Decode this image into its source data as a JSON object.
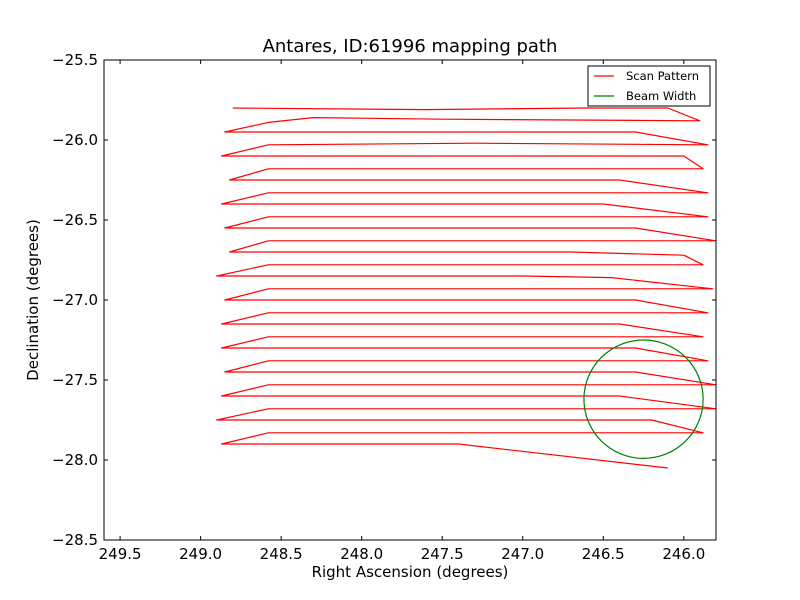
{
  "chart_data": {
    "type": "line",
    "title": "Antares, ID:61996 mapping path",
    "xlabel": "Right Ascension (degrees)",
    "ylabel": "Declination (degrees)",
    "xlim": [
      249.6,
      245.8
    ],
    "ylim": [
      -28.5,
      -25.5
    ],
    "x_inverted": true,
    "grid": false,
    "legend_position": "top-right",
    "xticks": [
      249.5,
      249.0,
      248.5,
      248.0,
      247.5,
      247.0,
      246.5,
      246.0
    ],
    "xtick_labels": [
      "249.5",
      "249.0",
      "248.5",
      "248.0",
      "247.5",
      "247.0",
      "246.5",
      "246.0"
    ],
    "yticks": [
      -25.5,
      -26.0,
      -26.5,
      -27.0,
      -27.5,
      -28.0,
      -28.5
    ],
    "ytick_labels": [
      "−25.5",
      "−26.0",
      "−26.5",
      "−27.0",
      "−27.5",
      "−28.0",
      "−28.5"
    ],
    "series": [
      {
        "name": "Scan Pattern",
        "color": "#ff0000",
        "x": [
          248.8,
          247.6,
          246.6,
          246.1,
          245.9,
          247.5,
          248.3,
          248.58,
          248.85,
          247.5,
          246.3,
          245.85,
          247.3,
          248.58,
          248.87,
          248.0,
          246.5,
          246.0,
          245.88,
          247.8,
          248.58,
          248.82,
          247.5,
          246.4,
          245.85,
          247.3,
          248.58,
          248.87,
          247.9,
          246.5,
          245.85,
          247.0,
          248.58,
          248.85,
          247.5,
          246.3,
          245.8,
          247.7,
          248.58,
          248.82,
          247.6,
          246.7,
          246.0,
          245.88,
          247.5,
          248.58,
          248.9,
          247.0,
          246.45,
          245.82,
          247.2,
          248.58,
          248.85,
          247.4,
          246.3,
          245.85,
          247.5,
          248.58,
          248.87,
          247.8,
          246.4,
          245.88,
          247.4,
          248.58,
          248.87,
          247.6,
          246.3,
          245.85,
          247.0,
          248.58,
          248.85,
          247.9,
          246.3,
          245.8,
          247.5,
          248.58,
          248.87,
          247.5,
          246.4,
          245.8,
          247.7,
          248.58,
          248.9,
          247.3,
          246.2,
          245.88,
          247.6,
          248.58,
          248.87,
          247.4,
          246.1
        ],
        "y": [
          -25.8,
          -25.81,
          -25.8,
          -25.8,
          -25.88,
          -25.87,
          -25.86,
          -25.89,
          -25.95,
          -25.95,
          -25.95,
          -26.03,
          -26.02,
          -26.03,
          -26.1,
          -26.1,
          -26.1,
          -26.1,
          -26.18,
          -26.18,
          -26.18,
          -26.25,
          -26.25,
          -26.25,
          -26.33,
          -26.33,
          -26.33,
          -26.4,
          -26.4,
          -26.4,
          -26.48,
          -26.48,
          -26.48,
          -26.55,
          -26.55,
          -26.55,
          -26.63,
          -26.63,
          -26.63,
          -26.7,
          -26.7,
          -26.7,
          -26.72,
          -26.78,
          -26.78,
          -26.78,
          -26.85,
          -26.85,
          -26.86,
          -26.93,
          -26.93,
          -26.93,
          -27.0,
          -27.0,
          -27.0,
          -27.08,
          -27.08,
          -27.08,
          -27.15,
          -27.15,
          -27.15,
          -27.23,
          -27.23,
          -27.23,
          -27.3,
          -27.3,
          -27.3,
          -27.38,
          -27.38,
          -27.38,
          -27.45,
          -27.45,
          -27.45,
          -27.53,
          -27.53,
          -27.53,
          -27.6,
          -27.6,
          -27.6,
          -27.68,
          -27.68,
          -27.68,
          -27.75,
          -27.75,
          -27.75,
          -27.83,
          -27.83,
          -27.83,
          -27.9,
          -27.9,
          -28.05
        ]
      },
      {
        "name": "Beam Width",
        "color": "#008000",
        "shape": "circle",
        "center": [
          246.25,
          -27.62
        ],
        "radius": 0.37
      }
    ]
  }
}
